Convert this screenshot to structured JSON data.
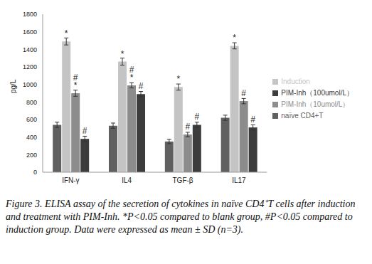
{
  "chart_data": {
    "type": "bar",
    "y_label": "pg/L",
    "categories": [
      "IFN-γ",
      "IL4",
      "TGF-β",
      "IL17"
    ],
    "ylim": [
      0,
      1800
    ],
    "yticks": [
      0,
      200,
      400,
      600,
      800,
      1000,
      1200,
      1400,
      1600,
      1800
    ],
    "legend": "right",
    "series": [
      {
        "name": "naïve CD4+T",
        "color": "#606060",
        "values": [
          540,
          530,
          350,
          620
        ],
        "errors": [
          30,
          30,
          25,
          30
        ],
        "markers": [
          [],
          [],
          [],
          []
        ]
      },
      {
        "name": "Induction",
        "color": "#c4c4c4",
        "values": [
          1490,
          1260,
          970,
          1440
        ],
        "errors": [
          40,
          40,
          35,
          35
        ],
        "markers": [
          [
            "*"
          ],
          [
            "*"
          ],
          [
            "*"
          ],
          [
            "*"
          ]
        ]
      },
      {
        "name": "PIM-Inh（10umol/L）",
        "color": "#8c8c8c",
        "values": [
          900,
          990,
          430,
          810
        ],
        "errors": [
          35,
          30,
          25,
          30
        ],
        "markers": [
          [
            "#",
            "*"
          ],
          [
            "#",
            "*"
          ],
          [
            "#"
          ],
          [
            "#"
          ]
        ]
      },
      {
        "name": "PIM-Inh（100umol/L）",
        "color": "#3c3c3c",
        "values": [
          380,
          890,
          540,
          510
        ],
        "errors": [
          30,
          30,
          30,
          30
        ],
        "markers": [
          [
            "#"
          ],
          [
            "#"
          ],
          [
            "#"
          ],
          [
            "#"
          ]
        ]
      }
    ]
  },
  "caption": "Figure 3. ELISA assay of the secretion of cytokines in naïve CD4⁺T cells after induction and treatment with PIM-Inh. *P<0.05 compared to blank group, #P<0.05 compared to induction group. Data were expressed as mean ± SD (n=3)."
}
